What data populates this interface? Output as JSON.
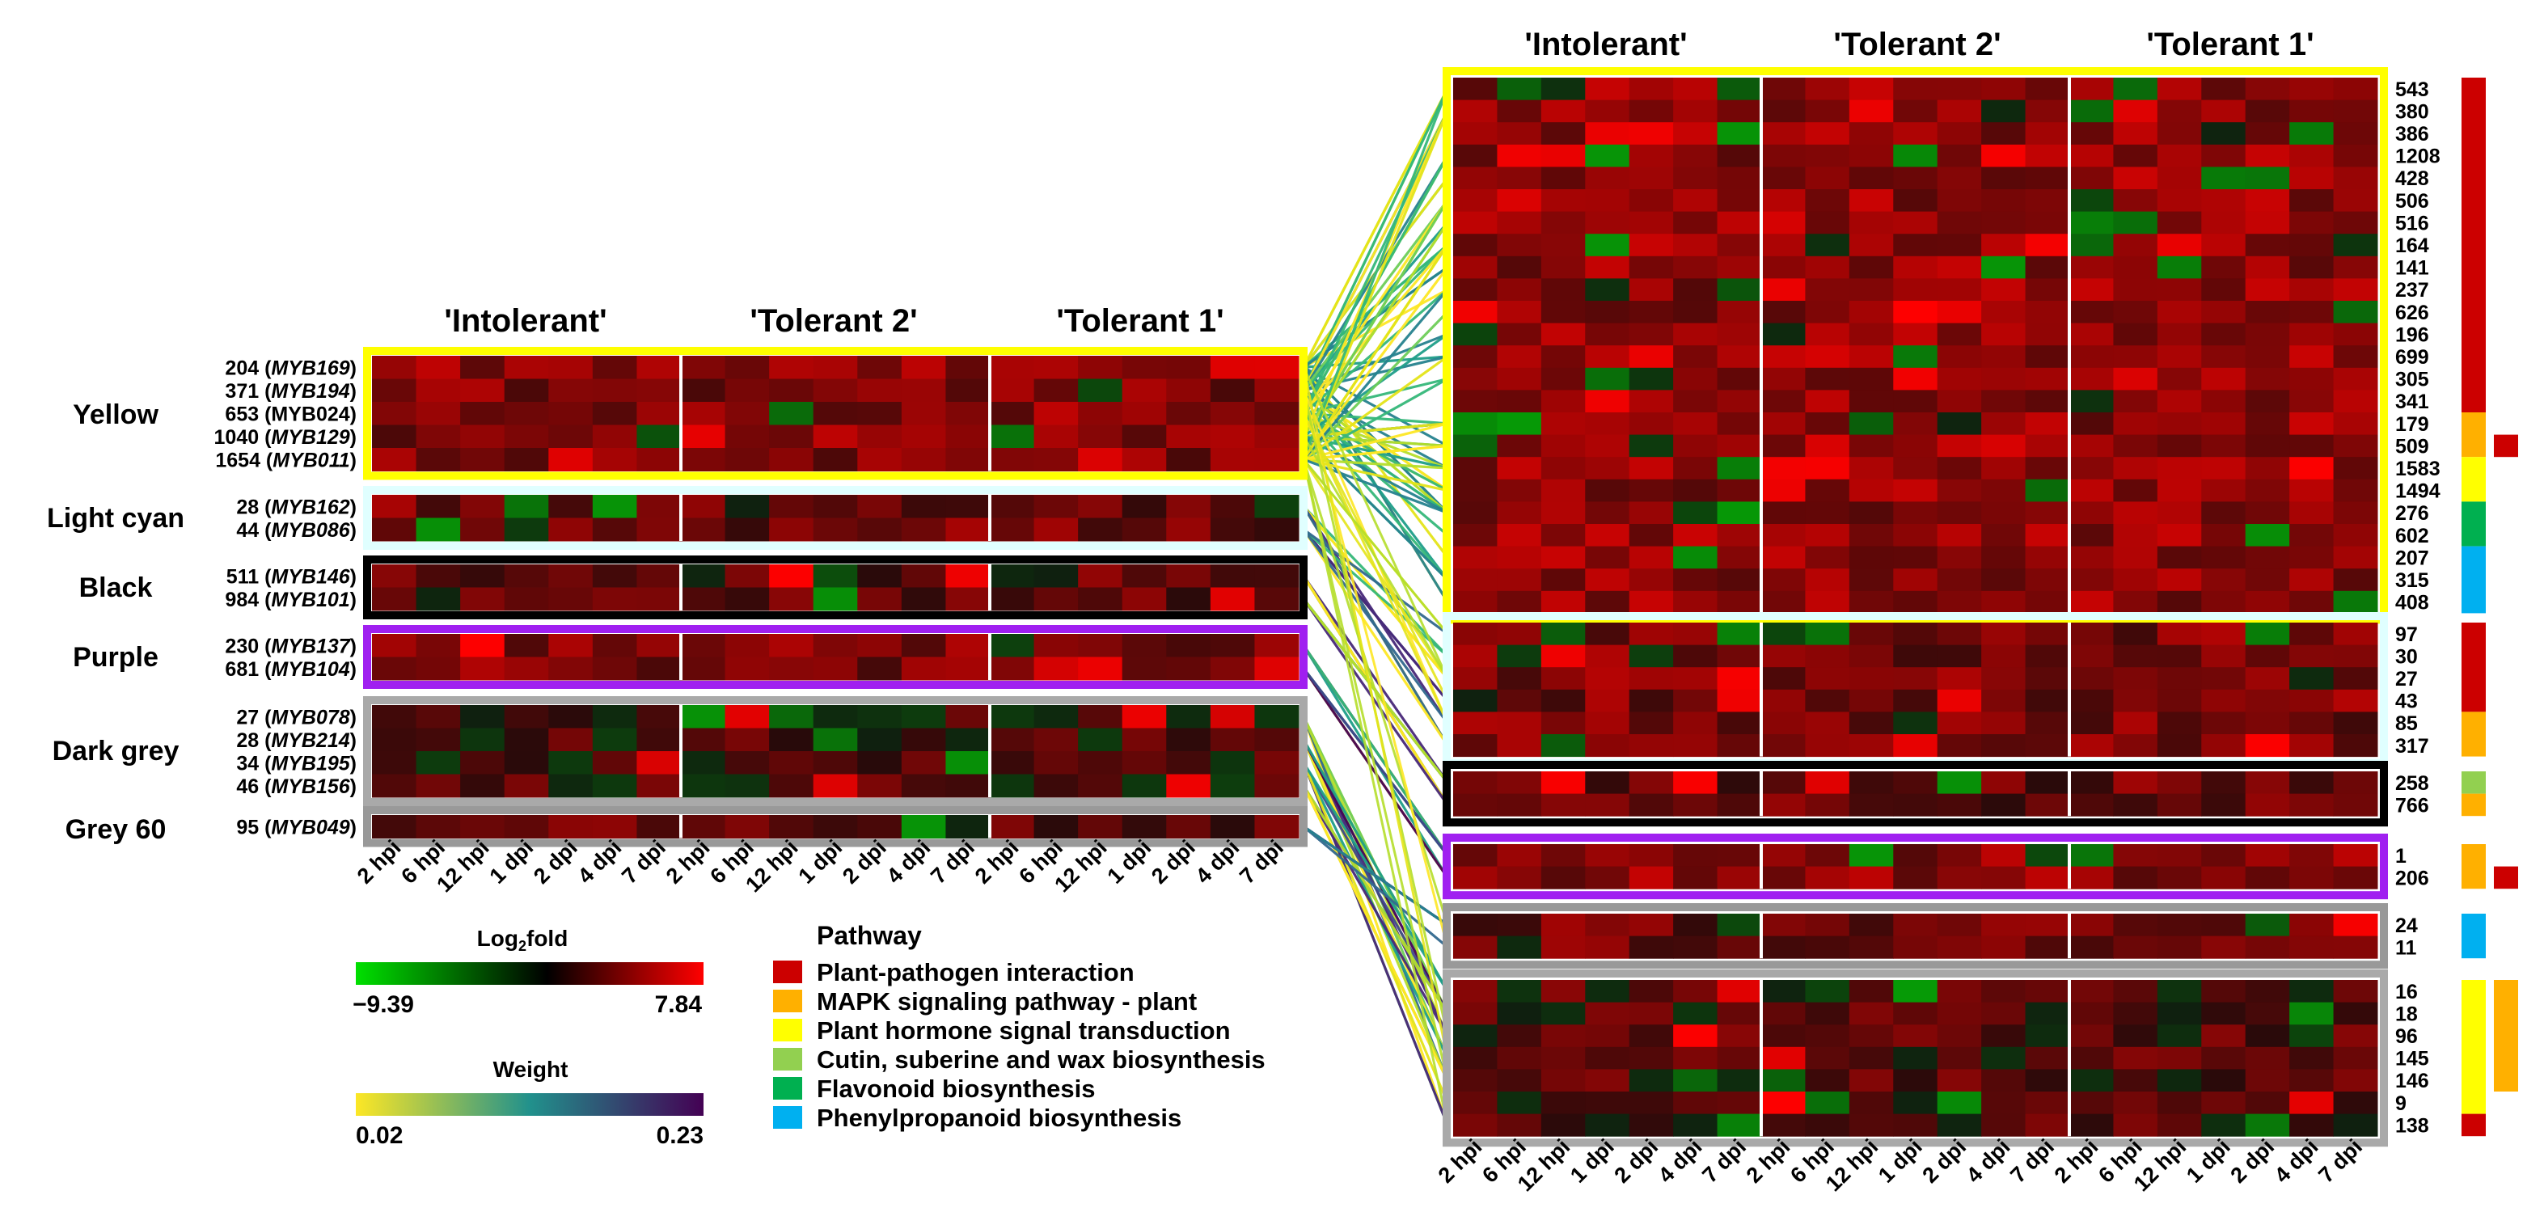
{
  "chart_data": {
    "type": "heatmap",
    "time_labels": [
      "2 hpi",
      "6 hpi",
      "12 hpi",
      "1 dpi",
      "2 dpi",
      "4 dpi",
      "7 dpi"
    ],
    "genotypes": [
      "'Intolerant'",
      "'Tolerant 2'",
      "'Tolerant 1'"
    ],
    "colorbar": {
      "title": "Log₂fold",
      "min_label": "−9.39",
      "max_label": "7.84",
      "min": -9.39,
      "max": 7.84,
      "colors": [
        "#00e000",
        "#000000",
        "#ff0000"
      ]
    },
    "weight_bar": {
      "title": "Weight",
      "min_label": "0.02",
      "max_label": "0.23",
      "colors": [
        "#fde725",
        "#21918c",
        "#440154"
      ]
    },
    "pathway_legend": {
      "title": "Pathway",
      "items": [
        {
          "label": "Plant-pathogen interaction",
          "color": "#cc0000"
        },
        {
          "label": "MAPK signaling pathway - plant",
          "color": "#ffb000"
        },
        {
          "label": "Plant hormone signal transduction",
          "color": "#ffff00"
        },
        {
          "label": "Cutin, suberine and wax biosynthesis",
          "color": "#92d050"
        },
        {
          "label": "Flavonoid biosynthesis",
          "color": "#00b050"
        },
        {
          "label": "Phenylpropanoid biosynthesis",
          "color": "#00b0f0"
        }
      ]
    },
    "modules": [
      {
        "name": "Yellow",
        "border": "#ffff00",
        "genes": [
          {
            "id": "204",
            "gene": "MYB169",
            "italic": true
          },
          {
            "id": "371",
            "gene": "MYB194",
            "italic": true
          },
          {
            "id": "653",
            "gene": "MYB024",
            "italic": false
          },
          {
            "id": "1040",
            "gene": "MYB129",
            "italic": true
          },
          {
            "id": "1654",
            "gene": "MYB011",
            "italic": true
          }
        ]
      },
      {
        "name": "Light cyan",
        "border": "#e0ffff",
        "genes": [
          {
            "id": "28",
            "gene": "MYB162",
            "italic": true
          },
          {
            "id": "44",
            "gene": "MYB086",
            "italic": true
          }
        ]
      },
      {
        "name": "Black",
        "border": "#000000",
        "genes": [
          {
            "id": "511",
            "gene": "MYB146",
            "italic": true
          },
          {
            "id": "984",
            "gene": "MYB101",
            "italic": true
          }
        ]
      },
      {
        "name": "Purple",
        "border": "#a020f0",
        "genes": [
          {
            "id": "230",
            "gene": "MYB137",
            "italic": true
          },
          {
            "id": "681",
            "gene": "MYB104",
            "italic": true
          }
        ]
      },
      {
        "name": "Dark grey",
        "border": "#a9a9a9",
        "genes": [
          {
            "id": "27",
            "gene": "MYB078",
            "italic": true
          },
          {
            "id": "28",
            "gene": "MYB214",
            "italic": true
          },
          {
            "id": "34",
            "gene": "MYB195",
            "italic": true
          },
          {
            "id": "46",
            "gene": "MYB156",
            "italic": true
          }
        ]
      },
      {
        "name": "Grey 60",
        "border": "#999999",
        "genes": [
          {
            "id": "95",
            "gene": "MYB049",
            "italic": true
          }
        ]
      }
    ],
    "right_modules": [
      {
        "border": "#ffff00",
        "rows": [
          "543",
          "380",
          "386",
          "1208",
          "428",
          "506",
          "516",
          "164",
          "141",
          "237",
          "626",
          "196",
          "699",
          "305",
          "341",
          "179",
          "509",
          "1583",
          "1494",
          "276",
          "602",
          "207",
          "315",
          "408"
        ]
      },
      {
        "border": "#e0ffff",
        "rows": [
          "97",
          "30",
          "27",
          "43",
          "85",
          "317"
        ]
      },
      {
        "border": "#000000",
        "rows": [
          "258",
          "766"
        ]
      },
      {
        "border": "#a020f0",
        "rows": [
          "1",
          "206"
        ]
      },
      {
        "border": "#999999",
        "rows": [
          "24",
          "11"
        ]
      },
      {
        "border": "#a9a9a9",
        "rows": [
          "16",
          "18",
          "96",
          "145",
          "146",
          "9",
          "138"
        ]
      }
    ],
    "right_pathways": [
      {
        "start": 0,
        "end": 14,
        "color": "#cc0000"
      },
      {
        "start": 15,
        "end": 16,
        "color": "#ffb000"
      },
      {
        "start": 17,
        "end": 18,
        "color": "#ffff00"
      },
      {
        "start": 19,
        "end": 20,
        "color": "#00b050"
      },
      {
        "start": 21,
        "end": 23,
        "color": "#00b0f0"
      },
      {
        "start": 24,
        "end": 27,
        "color": "#cc0000"
      },
      {
        "start": 28,
        "end": 29,
        "color": "#ffb000"
      },
      {
        "start": 30,
        "end": 30,
        "color": "#92d050"
      },
      {
        "start": 31,
        "end": 31,
        "color": "#ffb000"
      },
      {
        "start": 32,
        "end": 33,
        "color": "#ffb000"
      },
      {
        "start": 34,
        "end": 35,
        "color": "#00b0f0"
      },
      {
        "start": 36,
        "end": 41,
        "color": "#ffff00"
      },
      {
        "start": 42,
        "end": 42,
        "color": "#cc0000"
      }
    ],
    "right_pathways_extra": [
      {
        "start": 16,
        "end": 16,
        "color": "#cc0000"
      },
      {
        "start": 33,
        "end": 33,
        "color": "#cc0000"
      },
      {
        "start": 36,
        "end": 40,
        "color": "#ffb000"
      }
    ]
  }
}
